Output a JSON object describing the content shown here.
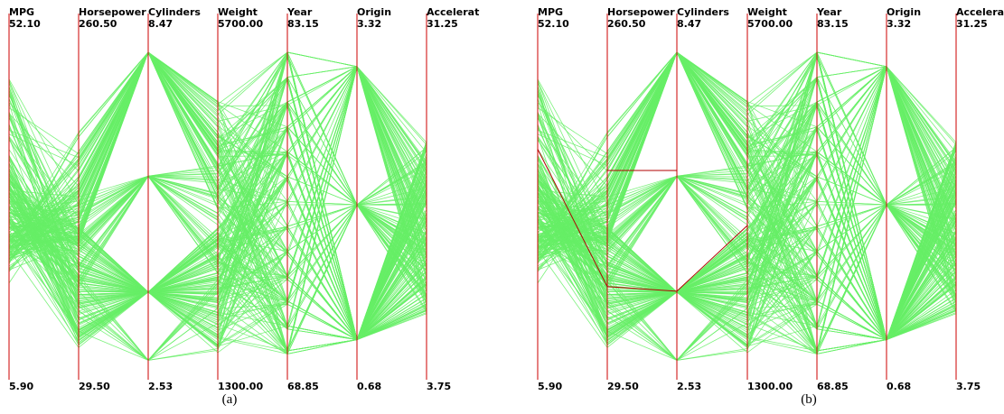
{
  "figure": {
    "panels": [
      {
        "caption": "(a)",
        "highlight": false
      },
      {
        "caption": "(b)",
        "highlight": true
      }
    ]
  },
  "chart_data": {
    "type": "parallel-coordinates",
    "axes": [
      {
        "label": "MPG",
        "max": "52.10",
        "min": "5.90"
      },
      {
        "label": "Horsepower",
        "max": "260.50",
        "min": "29.50"
      },
      {
        "label": "Cylinders",
        "max": "8.47",
        "min": "2.53"
      },
      {
        "label": "Weight",
        "max": "5700.00",
        "min": "1300.00"
      },
      {
        "label": "Year",
        "max": "83.15",
        "min": "68.85"
      },
      {
        "label": "Origin",
        "max": "3.32",
        "min": "0.68"
      },
      {
        "label": "Accelerat",
        "max": "31.25",
        "min": "3.75"
      }
    ],
    "highlighted_record": {
      "MPG": 38.0,
      "Horsepower": 90.0,
      "Cylinders": 4,
      "Weight": 3300.0
    },
    "line_color": "#66ee66",
    "axis_color": "#cc0000",
    "highlight_color": "#b00000"
  }
}
